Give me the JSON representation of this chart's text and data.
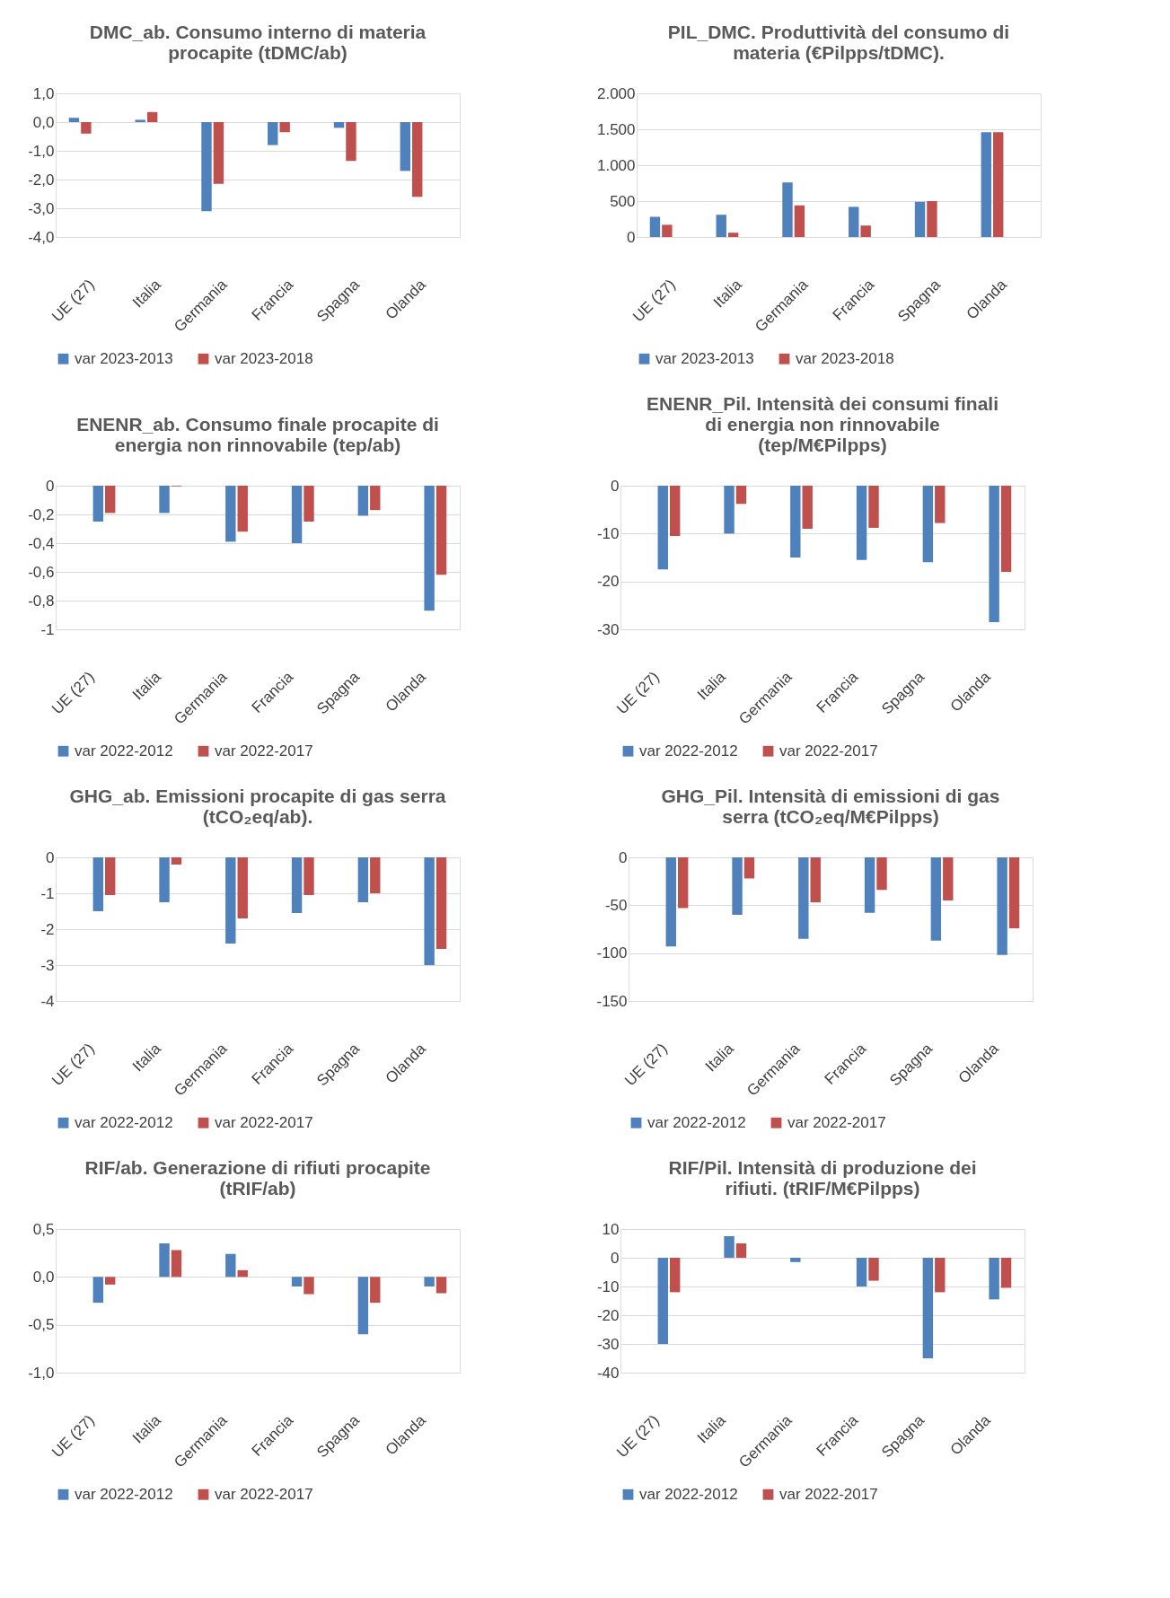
{
  "chart_data": [
    {
      "type": "bar",
      "title": "DMC_ab. Consumo interno di materia procapite (tDMC/ab)",
      "categories": [
        "UE (27)",
        "Italia",
        "Germania",
        "Francia",
        "Spagna",
        "Olanda"
      ],
      "series": [
        {
          "name": "var 2023-2013",
          "color": "#4f81bd",
          "values": [
            0.15,
            0.08,
            -3.1,
            -0.8,
            -0.2,
            -1.7
          ]
        },
        {
          "name": "var 2023-2018",
          "color": "#c0504d",
          "values": [
            -0.4,
            0.35,
            -2.15,
            -0.35,
            -1.35,
            -2.6
          ]
        }
      ],
      "ylim": [
        -4,
        1
      ],
      "yticks": [
        {
          "value": 1,
          "label": "1,0"
        },
        {
          "value": 0,
          "label": "0,0"
        },
        {
          "value": -1,
          "label": "-1,0"
        },
        {
          "value": -2,
          "label": "-2,0"
        },
        {
          "value": -3,
          "label": "-3,0"
        },
        {
          "value": -4,
          "label": "-4,0"
        }
      ],
      "grid": "y",
      "legend": "bottom"
    },
    {
      "type": "bar",
      "title": "PIL_DMC. Produttività del consumo di materia (€Pilpps/tDMC).",
      "categories": [
        "UE (27)",
        "Italia",
        "Germania",
        "Francia",
        "Spagna",
        "Olanda"
      ],
      "series": [
        {
          "name": "var 2023-2013",
          "color": "#4f81bd",
          "values": [
            280,
            310,
            760,
            420,
            490,
            1460
          ]
        },
        {
          "name": "var 2023-2018",
          "color": "#c0504d",
          "values": [
            170,
            60,
            440,
            160,
            500,
            1460
          ]
        }
      ],
      "ylim": [
        0,
        2000
      ],
      "yticks": [
        0,
        500,
        {
          "value": 1000,
          "label": "1.000"
        },
        {
          "value": 1500,
          "label": "1.500"
        },
        {
          "value": 2000,
          "label": "2.000"
        }
      ],
      "grid": "y",
      "legend": "bottom"
    },
    {
      "type": "bar",
      "title": "ENENR_ab. Consumo finale procapite di energia non rinnovabile (tep/ab)",
      "categories": [
        "UE (27)",
        "Italia",
        "Germania",
        "Francia",
        "Spagna",
        "Olanda"
      ],
      "series": [
        {
          "name": "var 2022-2012",
          "color": "#4f81bd",
          "values": [
            -0.25,
            -0.19,
            -0.39,
            -0.4,
            -0.21,
            -0.87
          ]
        },
        {
          "name": "var 2022-2017",
          "color": "#c0504d",
          "values": [
            -0.19,
            -0.005,
            -0.32,
            -0.25,
            -0.17,
            -0.62
          ]
        }
      ],
      "ylim": [
        -1,
        0
      ],
      "yticks": [
        0,
        {
          "value": -0.2,
          "label": "-0,2"
        },
        {
          "value": -0.4,
          "label": "-0,4"
        },
        {
          "value": -0.6,
          "label": "-0,6"
        },
        {
          "value": -0.8,
          "label": "-0,8"
        },
        -1
      ],
      "grid": "y",
      "legend": "bottom"
    },
    {
      "type": "bar",
      "title": "ENENR_Pil. Intensità dei consumi finali di energia non rinnovabile (tep/M€Pilpps)",
      "categories": [
        "UE (27)",
        "Italia",
        "Germania",
        "Francia",
        "Spagna",
        "Olanda"
      ],
      "series": [
        {
          "name": "var 2022-2012",
          "color": "#4f81bd",
          "values": [
            -17.5,
            -10,
            -15,
            -15.5,
            -16,
            -28.5
          ]
        },
        {
          "name": "var 2022-2017",
          "color": "#c0504d",
          "values": [
            -10.5,
            -3.8,
            -9,
            -8.8,
            -7.8,
            -18
          ]
        }
      ],
      "ylim": [
        -30,
        0
      ],
      "yticks": [
        0,
        -10,
        -20,
        -30
      ],
      "grid": "y",
      "legend": "bottom"
    },
    {
      "type": "bar",
      "title": "GHG_ab. Emissioni procapite di gas serra (tCO₂eq/ab).",
      "categories": [
        "UE (27)",
        "Italia",
        "Germania",
        "Francia",
        "Spagna",
        "Olanda"
      ],
      "series": [
        {
          "name": "var 2022-2012",
          "color": "#4f81bd",
          "values": [
            -1.5,
            -1.25,
            -2.4,
            -1.55,
            -1.25,
            -3.0
          ]
        },
        {
          "name": "var 2022-2017",
          "color": "#c0504d",
          "values": [
            -1.05,
            -0.2,
            -1.7,
            -1.05,
            -1.0,
            -2.55
          ]
        }
      ],
      "ylim": [
        -4,
        0
      ],
      "yticks": [
        0,
        -1,
        -2,
        -3,
        -4
      ],
      "grid": "y",
      "legend": "bottom"
    },
    {
      "type": "bar",
      "title": "GHG_Pil. Intensità di emissioni di gas serra (tCO₂eq/M€Pilpps)",
      "categories": [
        "UE (27)",
        "Italia",
        "Germania",
        "Francia",
        "Spagna",
        "Olanda"
      ],
      "series": [
        {
          "name": "var 2022-2012",
          "color": "#4f81bd",
          "values": [
            -93,
            -60,
            -85,
            -58,
            -87,
            -102
          ]
        },
        {
          "name": "var 2022-2017",
          "color": "#c0504d",
          "values": [
            -53,
            -22,
            -47,
            -34,
            -45,
            -74
          ]
        }
      ],
      "ylim": [
        -150,
        0
      ],
      "yticks": [
        0,
        -50,
        -100,
        -150
      ],
      "grid": "y",
      "legend": "bottom"
    },
    {
      "type": "bar",
      "title": "RIF/ab. Generazione di rifiuti procapite (tRIF/ab)",
      "categories": [
        "UE (27)",
        "Italia",
        "Germania",
        "Francia",
        "Spagna",
        "Olanda"
      ],
      "series": [
        {
          "name": "var 2022-2012",
          "color": "#4f81bd",
          "values": [
            -0.27,
            0.35,
            0.24,
            -0.1,
            -0.6,
            -0.1
          ]
        },
        {
          "name": "var 2022-2017",
          "color": "#c0504d",
          "values": [
            -0.08,
            0.28,
            0.07,
            -0.18,
            -0.27,
            -0.17
          ]
        }
      ],
      "ylim": [
        -1,
        0.5
      ],
      "yticks": [
        {
          "value": 0.5,
          "label": "0,5"
        },
        {
          "value": 0,
          "label": "0,0"
        },
        {
          "value": -0.5,
          "label": "-0,5"
        },
        {
          "value": -1,
          "label": "-1,0"
        }
      ],
      "grid": "y",
      "legend": "bottom"
    },
    {
      "type": "bar",
      "title": "RIF/Pil. Intensità di produzione dei rifiuti. (tRIF/M€Pilpps)",
      "categories": [
        "UE (27)",
        "Italia",
        "Germania",
        "Francia",
        "Spagna",
        "Olanda"
      ],
      "series": [
        {
          "name": "var 2022-2012",
          "color": "#4f81bd",
          "values": [
            -30,
            7.5,
            -1.5,
            -10,
            -35,
            -14.5
          ]
        },
        {
          "name": "var 2022-2017",
          "color": "#c0504d",
          "values": [
            -12,
            5,
            null,
            -8,
            -12,
            -10.5
          ]
        }
      ],
      "ylim": [
        -40,
        10
      ],
      "yticks": [
        10,
        0,
        -10,
        -20,
        -30,
        -40
      ],
      "grid": "y",
      "legend": "bottom"
    }
  ]
}
